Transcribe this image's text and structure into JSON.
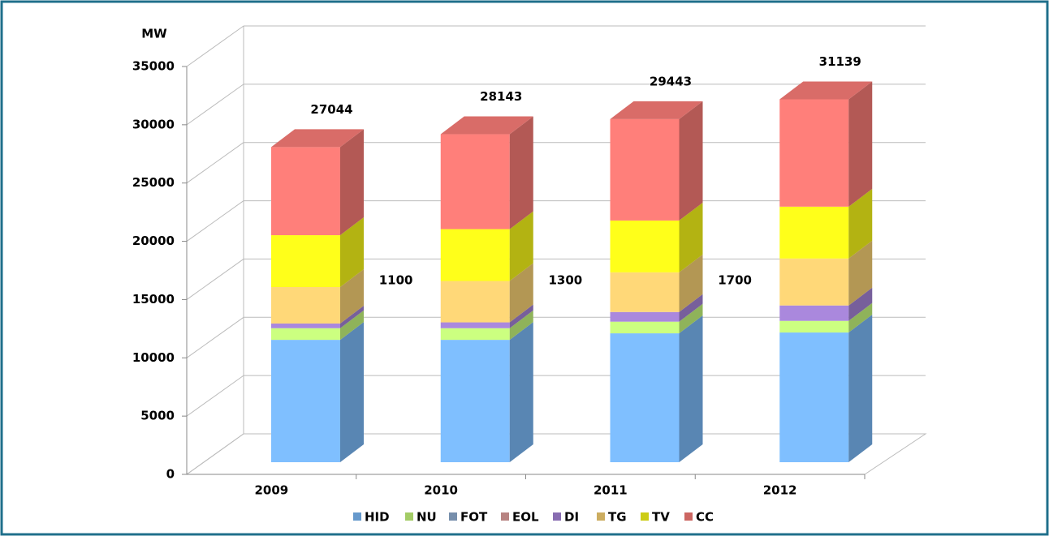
{
  "chart_data": {
    "type": "bar3d_stacked",
    "axis_title": "MW",
    "categories": [
      "2009",
      "2010",
      "2011",
      "2012"
    ],
    "series": [
      {
        "name": "HID",
        "color": "#7fbfff",
        "values": [
          10500,
          10500,
          11060,
          11130
        ]
      },
      {
        "name": "NU",
        "color": "#ccff80",
        "values": [
          1000,
          1000,
          1000,
          1000
        ]
      },
      {
        "name": "FOT",
        "color": "#95b3d7",
        "values": [
          0,
          0,
          0,
          0
        ]
      },
      {
        "name": "EOL",
        "color": "#e6a5a3",
        "values": [
          0,
          0,
          0,
          0
        ]
      },
      {
        "name": "DI",
        "color": "#aa88dd",
        "values": [
          400,
          500,
          830,
          1320
        ]
      },
      {
        "name": "TG",
        "color": "#ffd878",
        "values": [
          3130,
          3550,
          3400,
          4030
        ]
      },
      {
        "name": "TV",
        "color": "#ffff1a",
        "values": [
          4450,
          4450,
          4450,
          4450
        ]
      },
      {
        "name": "CC",
        "color": "#ff7f7a",
        "values": [
          7564,
          8143,
          8703,
          9209
        ]
      }
    ],
    "totals": [
      27044,
      28143,
      29443,
      31139
    ],
    "between_labels": [
      1100,
      1300,
      1700
    ],
    "ylim": [
      0,
      35000
    ],
    "yticks": [
      0,
      5000,
      10000,
      15000,
      20000,
      25000,
      30000,
      35000
    ],
    "grid": true
  }
}
